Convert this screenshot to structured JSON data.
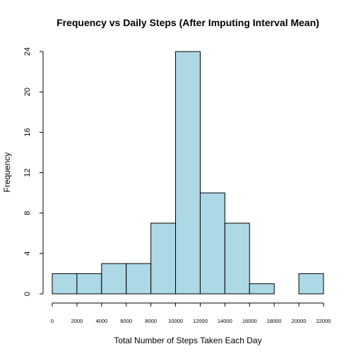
{
  "chart_data": {
    "type": "bar",
    "title": "Frequency vs Daily Steps (After Imputing Interval Mean)",
    "xlabel": "Total  Number of Steps Taken Each Day",
    "ylabel": "Frequency",
    "bin_edges": [
      0,
      2000,
      4000,
      6000,
      8000,
      10000,
      12000,
      14000,
      16000,
      18000,
      20000,
      22000
    ],
    "values": [
      2,
      2,
      3,
      3,
      7,
      24,
      10,
      7,
      1,
      0,
      2
    ],
    "xlim": [
      0,
      22000
    ],
    "ylim": [
      0,
      24
    ],
    "xticks": [
      0,
      2000,
      4000,
      6000,
      8000,
      10000,
      12000,
      14000,
      16000,
      18000,
      20000,
      22000
    ],
    "yticks": [
      0,
      4,
      8,
      12,
      16,
      20,
      24
    ],
    "bar_color": "#add8e6",
    "grid": false
  }
}
